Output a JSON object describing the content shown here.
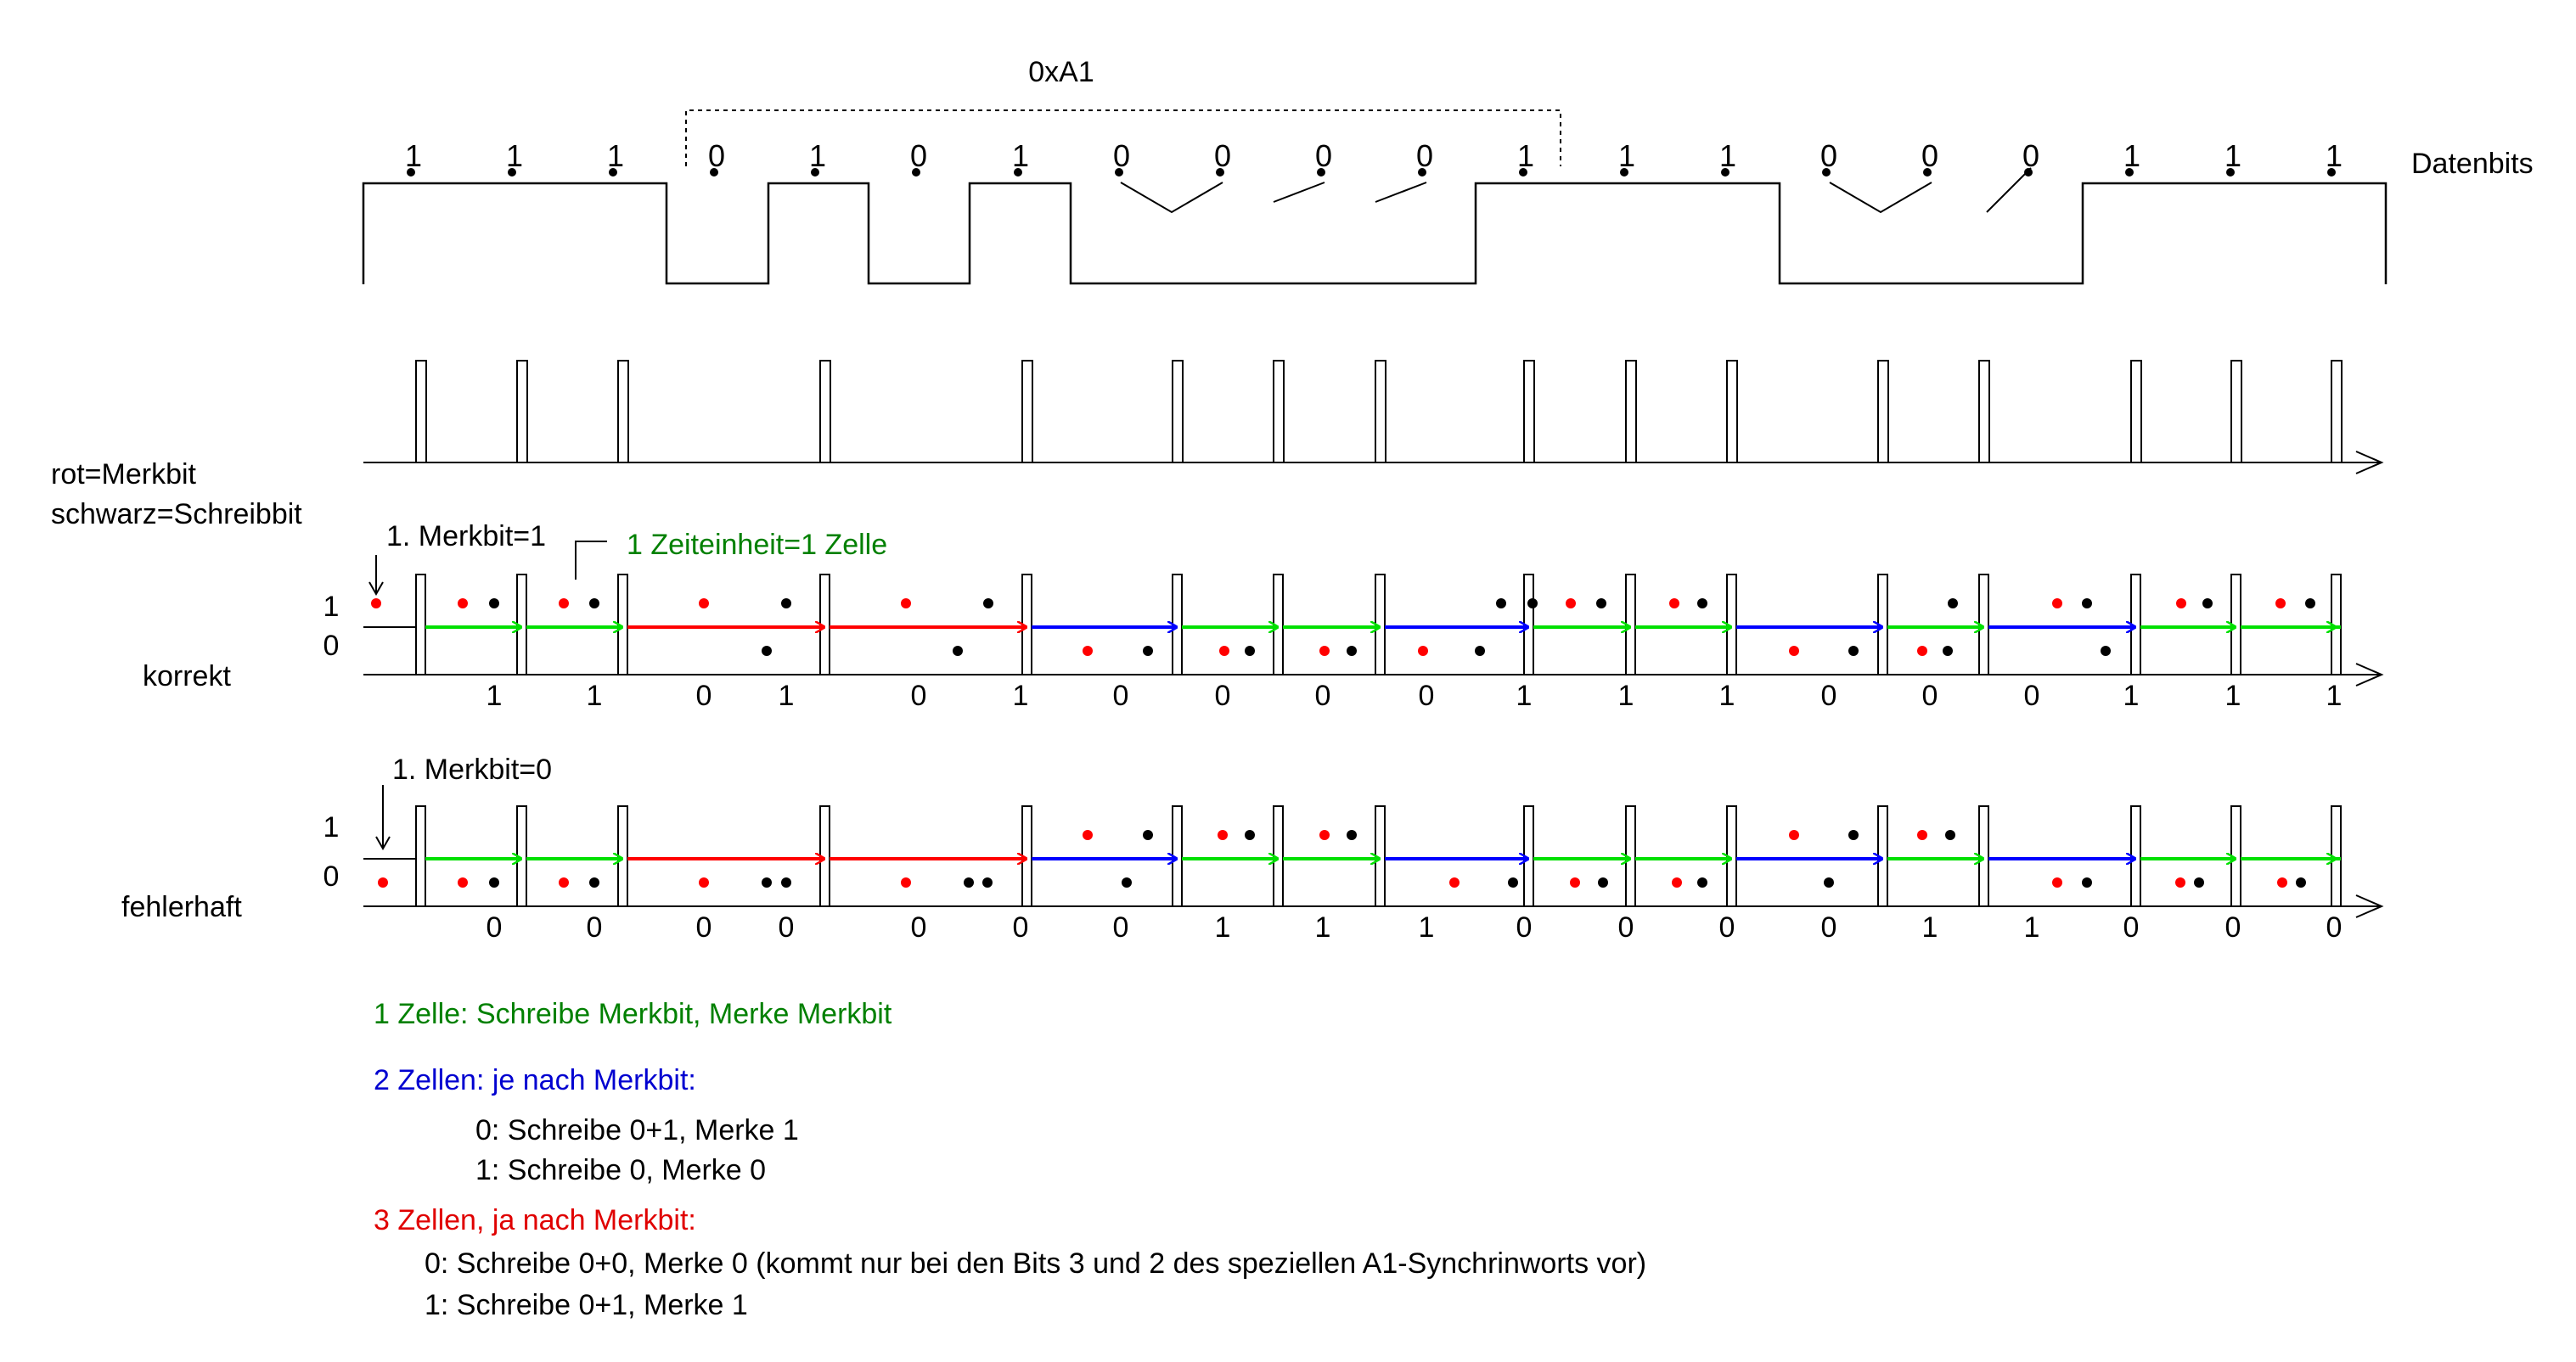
{
  "header": {
    "byte_label": "0xA1",
    "datenbits_label": "Datenbits"
  },
  "data_bits": [
    1,
    1,
    1,
    0,
    1,
    0,
    1,
    0,
    0,
    0,
    0,
    1,
    1,
    1,
    0,
    0,
    0,
    1,
    1,
    1
  ],
  "side_labels": {
    "color_key_red": "rot=Merkbit",
    "color_key_black": "schwarz=Schreibbit",
    "row_correct": "korrekt",
    "row_faulty": "fehlerhaft",
    "level_one": "1",
    "level_zero": "0"
  },
  "annotations": {
    "merkbit_correct": "1. Merkbit=1",
    "merkbit_faulty": "1. Merkbit=0",
    "time_unit": "1 Zeiteinheit=1 Zelle"
  },
  "row_correct_bits": [
    "1",
    "1",
    "0",
    "1",
    "0",
    "1",
    "0",
    "0",
    "0",
    "0",
    "1",
    "1",
    "1",
    "0",
    "0",
    "0",
    "1",
    "1",
    "1"
  ],
  "row_faulty_bits": [
    "0",
    "0",
    "0",
    "0",
    "0",
    "0",
    "0",
    "1",
    "1",
    "1",
    "0",
    "0",
    "0",
    "0",
    "1",
    "1",
    "0",
    "0",
    "0"
  ],
  "legend": {
    "green": "1 Zelle: Schreibe Merkbit, Merke Merkbit",
    "blue": "2 Zellen: je nach Merkbit:",
    "blue_0": "0: Schreibe 0+1, Merke 1",
    "blue_1": "1: Schreibe 0, Merke 0",
    "red": "3 Zellen, ja nach Merkbit:",
    "red_0": "0: Schreibe 0+0, Merke 0 (kommt nur bei den Bits 3 und 2 des speziellen A1-Synchrinworts vor)",
    "red_1": "1: Schreibe 0+1, Merke 1"
  },
  "colors": {
    "green": "#00e000",
    "blue": "#0000ff",
    "red": "#ff0000",
    "merkbit_dot": "#ff0000",
    "schreibbit_dot": "#000000"
  }
}
